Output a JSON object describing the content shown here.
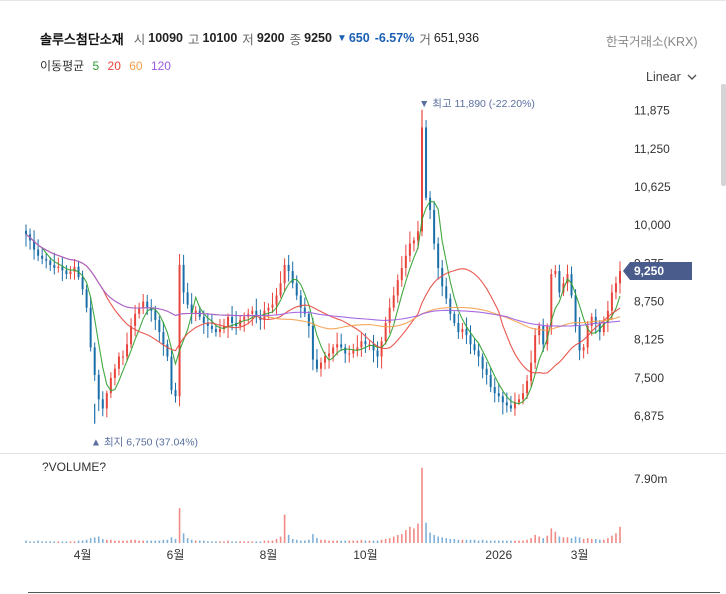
{
  "header": {
    "name": "솔루스첨단소재",
    "open_label": "시",
    "open": "10090",
    "high_label": "고",
    "high": "10100",
    "low_label": "저",
    "low": "9200",
    "close_label": "종",
    "close": "9250",
    "change_arrow": "▼",
    "change": "650",
    "change_pct": "-6.57%",
    "volume_label": "거",
    "volume": "651,936",
    "exchange": "한국거래소(KRX)"
  },
  "moving_average": {
    "label": "이동평균",
    "periods": [
      {
        "value": "5",
        "color": "#2ca02c"
      },
      {
        "value": "20",
        "color": "#e8453c"
      },
      {
        "value": "60",
        "color": "#f5a04a"
      },
      {
        "value": "120",
        "color": "#9d5ce0"
      }
    ]
  },
  "scale_selector": {
    "label": "Linear",
    "icon": "chevron-down-icon"
  },
  "volume_panel": {
    "title": "?VOLUME?",
    "axis_label": "7.90m"
  },
  "colors": {
    "up": "#e8453c",
    "down": "#1a6fa8",
    "price_tag": "#4a5c8c",
    "annotation": "#5a6fa0"
  },
  "chart_data": {
    "type": "candlestick",
    "y_ticks": [
      "11,875",
      "11,250",
      "10,625",
      "10,000",
      "9,375",
      "8,750",
      "8,125",
      "7,500",
      "6,875"
    ],
    "y_tick_values": [
      11875,
      11250,
      10625,
      10000,
      9375,
      8750,
      8125,
      7500,
      6875
    ],
    "ylim": [
      6680,
      12050
    ],
    "x_ticks": [
      "4월",
      "6월",
      "8월",
      "10월",
      "2026",
      "3월"
    ],
    "x_tick_index": [
      14,
      37,
      60,
      84,
      117,
      137
    ],
    "last_price": "9,250",
    "annotations": {
      "high": {
        "text": "최고 11,890 (-22.20%)",
        "value": 11890,
        "index": 98,
        "marker": "▼"
      },
      "low": {
        "text": "최지 6,750 (37.04%)",
        "value": 6750,
        "index": 17,
        "marker": "▲"
      }
    },
    "closes": [
      9850,
      9750,
      9600,
      9500,
      9450,
      9420,
      9350,
      9300,
      9320,
      9260,
      9200,
      9240,
      9320,
      9150,
      8950,
      8650,
      8000,
      7550,
      7150,
      7000,
      7250,
      7500,
      7650,
      7850,
      7850,
      8050,
      8350,
      8550,
      8650,
      8750,
      8650,
      8600,
      8450,
      8250,
      8050,
      7850,
      7300,
      7200,
      9350,
      8900,
      8700,
      8550,
      8600,
      8500,
      8400,
      8350,
      8300,
      8250,
      8300,
      8350,
      8500,
      8400,
      8350,
      8450,
      8500,
      8550,
      8600,
      8500,
      8450,
      8600,
      8650,
      8700,
      8850,
      9050,
      9350,
      9250,
      9050,
      8850,
      8650,
      8550,
      8350,
      7800,
      7650,
      7750,
      7850,
      7900,
      8000,
      8050,
      8000,
      7900,
      7900,
      7950,
      8000,
      8100,
      8050,
      8050,
      7950,
      7850,
      8100,
      8400,
      8650,
      8850,
      9100,
      9300,
      9500,
      9700,
      9750,
      9900,
      11600,
      10450,
      10250,
      9700,
      9300,
      9000,
      8800,
      8550,
      8400,
      8250,
      8300,
      8200,
      8050,
      7950,
      7850,
      7650,
      7550,
      7350,
      7250,
      7200,
      7100,
      7050,
      7000,
      7100,
      7150,
      7250,
      7450,
      7750,
      8200,
      8350,
      8050,
      8350,
      9200,
      9250,
      8900,
      9050,
      9200,
      8850,
      8350,
      7950,
      8000,
      8350,
      8500,
      8400,
      8250,
      8400,
      8600,
      8900,
      9050,
      9250
    ],
    "volume": {
      "axis_label": "7.90m",
      "axis_value": 7.9,
      "ylim": [
        0,
        10.5
      ],
      "values": [
        0.3,
        0.2,
        0.2,
        0.3,
        0.2,
        0.2,
        0.2,
        0.2,
        0.2,
        0.2,
        0.2,
        0.2,
        0.2,
        0.3,
        0.3,
        0.4,
        0.6,
        0.7,
        0.8,
        0.5,
        0.4,
        0.4,
        0.3,
        0.3,
        0.3,
        0.3,
        0.4,
        0.4,
        0.3,
        0.3,
        0.3,
        0.3,
        0.3,
        0.3,
        0.4,
        0.4,
        0.7,
        0.5,
        4.3,
        1.2,
        0.6,
        0.4,
        0.3,
        0.3,
        0.3,
        0.2,
        0.2,
        0.2,
        0.2,
        0.2,
        0.3,
        0.2,
        0.2,
        0.2,
        0.2,
        0.2,
        0.2,
        0.2,
        0.2,
        0.3,
        0.3,
        0.3,
        0.5,
        0.8,
        3.5,
        1.0,
        0.5,
        0.4,
        0.3,
        0.3,
        0.4,
        1.1,
        0.6,
        0.4,
        0.4,
        0.3,
        0.3,
        0.3,
        0.3,
        0.3,
        0.3,
        0.3,
        0.3,
        0.4,
        0.3,
        0.3,
        0.3,
        0.3,
        0.4,
        0.5,
        0.6,
        0.8,
        1.0,
        1.1,
        1.6,
        2.0,
        1.8,
        2.4,
        9.3,
        2.5,
        1.3,
        1.0,
        0.8,
        0.7,
        0.6,
        0.5,
        0.5,
        0.4,
        0.4,
        0.4,
        0.4,
        0.4,
        0.3,
        0.4,
        0.3,
        0.3,
        0.3,
        0.3,
        0.3,
        0.3,
        0.3,
        0.3,
        0.3,
        0.3,
        0.4,
        0.6,
        1.0,
        0.8,
        0.6,
        0.9,
        1.8,
        1.4,
        0.8,
        0.7,
        0.7,
        0.6,
        0.8,
        0.7,
        0.5,
        0.6,
        0.5,
        0.5,
        0.4,
        0.4,
        0.6,
        0.9,
        1.2,
        2.0
      ]
    },
    "series": [
      {
        "name": "5",
        "period": 5,
        "color": "#2ca02c"
      },
      {
        "name": "20",
        "period": 20,
        "color": "#e8453c"
      },
      {
        "name": "60",
        "period": 60,
        "color": "#f5a04a"
      },
      {
        "name": "120",
        "period": 120,
        "color": "#9d5ce0"
      }
    ]
  }
}
